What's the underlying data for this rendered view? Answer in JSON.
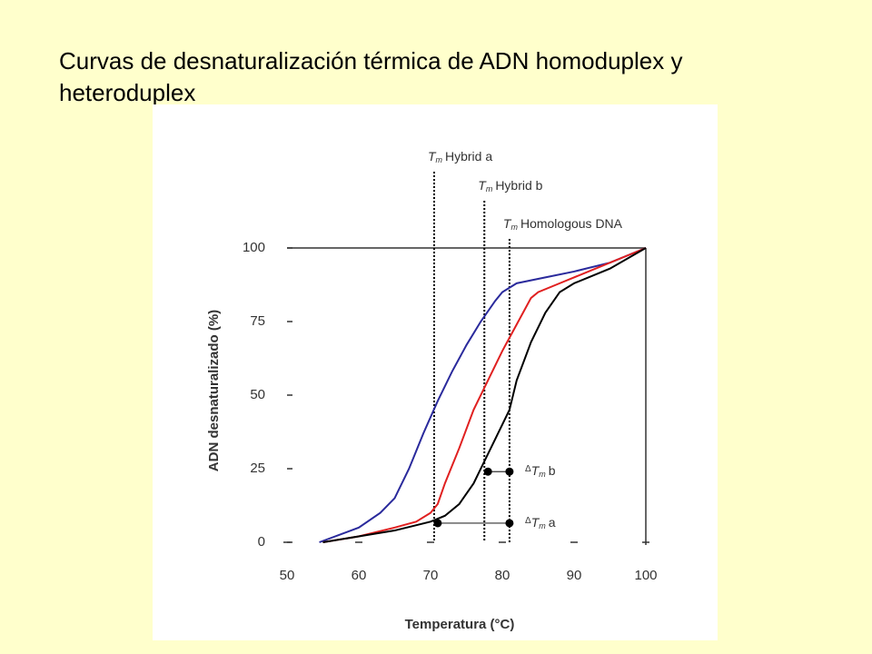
{
  "chart_data": {
    "type": "line",
    "title": "Curvas de desnaturalización térmica de ADN homoduplex y heteroduplex",
    "x_label": "Temperatura (°C)",
    "y_label": "ADN desnaturalizado (%)",
    "xlim": [
      50,
      100
    ],
    "xticks": [
      50,
      60,
      70,
      80,
      90,
      100
    ],
    "ylim": [
      0,
      100
    ],
    "yticks": [
      0,
      25,
      50,
      75,
      100
    ],
    "series": [
      {
        "color": "#2a2a9c",
        "x": [
          54.5,
          60,
          63,
          65,
          67,
          69,
          71,
          73,
          75,
          77,
          79,
          80,
          82,
          86,
          90,
          95,
          100
        ],
        "values": [
          0,
          5,
          10,
          15,
          25,
          37,
          48,
          58,
          67,
          75,
          82,
          85,
          88,
          90,
          92,
          95,
          100
        ]
      },
      {
        "color": "#e02020",
        "x": [
          55,
          60,
          65,
          68,
          70,
          71,
          72,
          74,
          76,
          78,
          80,
          82,
          84,
          85,
          88,
          92,
          100
        ],
        "values": [
          0,
          2,
          5,
          7,
          10,
          13,
          20,
          32,
          45,
          55,
          65,
          74,
          83,
          85,
          88,
          92,
          100
        ]
      },
      {
        "color": "#000000",
        "x": [
          55,
          60,
          65,
          70,
          72,
          74,
          76,
          78,
          80,
          81,
          82,
          84,
          86,
          88,
          90,
          95,
          100
        ],
        "values": [
          0,
          2,
          4,
          7,
          9,
          13,
          20,
          30,
          40,
          45,
          55,
          68,
          78,
          85,
          88,
          93,
          100
        ]
      }
    ],
    "markers": [
      {
        "x": 70.5,
        "symbol": "T",
        "subscript": "m",
        "text": "Hybrid  a"
      },
      {
        "x": 77.5,
        "symbol": "T",
        "subscript": "m",
        "text": "Hybrid  b"
      },
      {
        "x": 81,
        "symbol": "T",
        "subscript": "m",
        "text": "Homologous DNA"
      }
    ],
    "deltas": [
      {
        "y": 24,
        "x": [
          78,
          81
        ],
        "prefix": "Δ",
        "symbol": "T",
        "subscript": "m",
        "text": "b"
      },
      {
        "y": 6.5,
        "x": [
          71,
          81
        ],
        "prefix": "Δ",
        "symbol": "T",
        "subscript": "m",
        "text": "a"
      }
    ]
  }
}
